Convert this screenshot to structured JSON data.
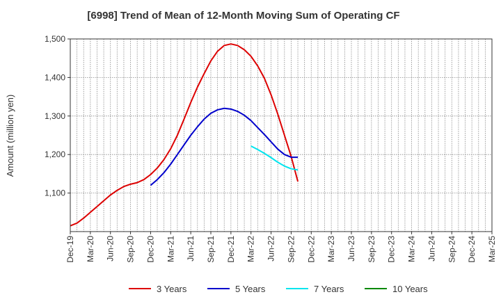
{
  "chart_data": {
    "type": "line",
    "title": "[6998]  Trend of Mean of 12-Month Moving Sum of Operating CF",
    "xlabel": "",
    "ylabel": "Amount (million yen)",
    "ylim": [
      1000,
      1500
    ],
    "yticks": [
      1100,
      1200,
      1300,
      1400,
      1500
    ],
    "ytick_labels": [
      "1,100",
      "1,200",
      "1,300",
      "1,400",
      "1,500"
    ],
    "x_categories": [
      "Dec-19",
      "Mar-20",
      "Jun-20",
      "Sep-20",
      "Dec-20",
      "Mar-21",
      "Jun-21",
      "Sep-21",
      "Dec-21",
      "Mar-22",
      "Jun-22",
      "Sep-22",
      "Dec-22",
      "Mar-23",
      "Jun-23",
      "Sep-23",
      "Dec-23",
      "Mar-24",
      "Jun-24",
      "Sep-24",
      "Dec-24",
      "Mar-25"
    ],
    "grid": true,
    "legend_position": "bottom",
    "series": [
      {
        "name": "3 Years",
        "color": "#dd0000",
        "points": [
          [
            0,
            1015
          ],
          [
            1,
            1022
          ],
          [
            2,
            1035
          ],
          [
            3,
            1050
          ],
          [
            4,
            1065
          ],
          [
            5,
            1080
          ],
          [
            6,
            1095
          ],
          [
            7,
            1107
          ],
          [
            8,
            1117
          ],
          [
            9,
            1123
          ],
          [
            10,
            1127
          ],
          [
            11,
            1135
          ],
          [
            12,
            1148
          ],
          [
            13,
            1165
          ],
          [
            14,
            1187
          ],
          [
            15,
            1215
          ],
          [
            16,
            1250
          ],
          [
            17,
            1292
          ],
          [
            18,
            1335
          ],
          [
            19,
            1375
          ],
          [
            20,
            1410
          ],
          [
            21,
            1443
          ],
          [
            22,
            1468
          ],
          [
            23,
            1483
          ],
          [
            24,
            1487
          ],
          [
            25,
            1483
          ],
          [
            26,
            1472
          ],
          [
            27,
            1455
          ],
          [
            28,
            1430
          ],
          [
            29,
            1398
          ],
          [
            30,
            1355
          ],
          [
            31,
            1305
          ],
          [
            32,
            1250
          ],
          [
            33,
            1195
          ],
          [
            34,
            1130
          ]
        ]
      },
      {
        "name": "5 Years",
        "color": "#0000cc",
        "points": [
          [
            12,
            1120
          ],
          [
            13,
            1135
          ],
          [
            14,
            1153
          ],
          [
            15,
            1175
          ],
          [
            16,
            1200
          ],
          [
            17,
            1225
          ],
          [
            18,
            1250
          ],
          [
            19,
            1272
          ],
          [
            20,
            1292
          ],
          [
            21,
            1307
          ],
          [
            22,
            1316
          ],
          [
            23,
            1320
          ],
          [
            24,
            1318
          ],
          [
            25,
            1312
          ],
          [
            26,
            1302
          ],
          [
            27,
            1288
          ],
          [
            28,
            1270
          ],
          [
            29,
            1252
          ],
          [
            30,
            1233
          ],
          [
            31,
            1214
          ],
          [
            32,
            1200
          ],
          [
            33,
            1193
          ],
          [
            34,
            1193
          ]
        ]
      },
      {
        "name": "7 Years",
        "color": "#00e5ee",
        "points": [
          [
            27,
            1222
          ],
          [
            28,
            1213
          ],
          [
            29,
            1203
          ],
          [
            30,
            1192
          ],
          [
            31,
            1180
          ],
          [
            32,
            1170
          ],
          [
            33,
            1163
          ],
          [
            34,
            1160
          ]
        ]
      },
      {
        "name": "10 Years",
        "color": "#008800",
        "points": []
      }
    ]
  }
}
